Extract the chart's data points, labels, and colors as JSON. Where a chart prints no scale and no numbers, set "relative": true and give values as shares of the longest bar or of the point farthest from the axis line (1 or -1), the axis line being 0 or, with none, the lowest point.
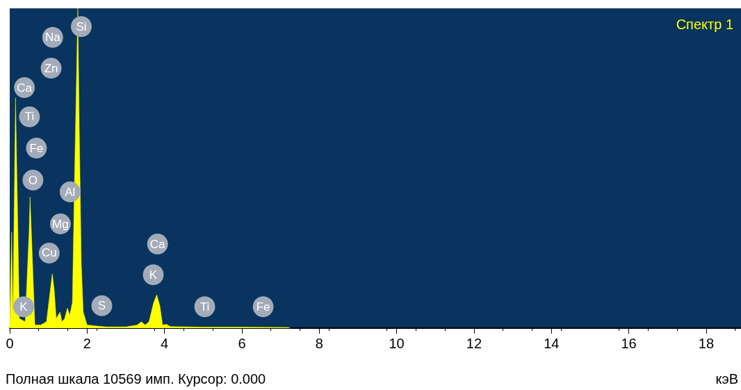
{
  "chart_data": {
    "type": "area",
    "title": "Спектр 1",
    "xlabel": "кэВ",
    "relative": true,
    "color": "#ffff00",
    "x": [
      0,
      0.05,
      0.08,
      0.15,
      0.25,
      0.4,
      0.5,
      0.525,
      0.56,
      0.65,
      0.8,
      0.95,
      1.05,
      1.1,
      1.15,
      1.2,
      1.25,
      1.3,
      1.35,
      1.42,
      1.49,
      1.55,
      1.62,
      1.68,
      1.76,
      1.8,
      1.85,
      1.9,
      2.0,
      2.3,
      2.5,
      3.0,
      3.3,
      3.4,
      3.5,
      3.6,
      3.72,
      3.8,
      3.88,
      3.95,
      4.05,
      4.15,
      5,
      6,
      7.2,
      7.25
    ],
    "values": [
      0,
      0.3,
      0.02,
      0.72,
      0.03,
      0.02,
      0.3,
      0.41,
      0.3,
      0.01,
      0.01,
      0.02,
      0.12,
      0.17,
      0.12,
      0.03,
      0.04,
      0.05,
      0.02,
      0.03,
      0.063,
      0.04,
      0.08,
      0.5,
      1,
      0.6,
      0.2,
      0.05,
      0.01,
      0.006,
      0.004,
      0.004,
      0.01,
      0.02,
      0.01,
      0.02,
      0.08,
      0.104,
      0.07,
      0.01,
      0.012,
      0.005,
      0.003,
      0.003,
      0.002,
      0
    ],
    "xlim": [
      0,
      18.9
    ],
    "xticks": [
      0,
      2,
      4,
      6,
      8,
      10,
      12,
      14,
      16,
      18
    ],
    "annotations": [
      {
        "text": "Si",
        "x": 1.85,
        "y": 0.943
      },
      {
        "text": "Na",
        "x": 1.11,
        "y": 0.909
      },
      {
        "text": "Zn",
        "x": 1.07,
        "y": 0.813
      },
      {
        "text": "Ca",
        "x": 0.38,
        "y": 0.752
      },
      {
        "text": "Ti",
        "x": 0.51,
        "y": 0.661
      },
      {
        "text": "Fe",
        "x": 0.69,
        "y": 0.563
      },
      {
        "text": "O",
        "x": 0.6,
        "y": 0.463
      },
      {
        "text": "Al",
        "x": 1.56,
        "y": 0.426
      },
      {
        "text": "Mg",
        "x": 1.31,
        "y": 0.326
      },
      {
        "text": "Cu",
        "x": 1.02,
        "y": 0.235
      },
      {
        "text": "Ca",
        "x": 3.82,
        "y": 0.263
      },
      {
        "text": "K",
        "x": 3.71,
        "y": 0.167
      },
      {
        "text": "K",
        "x": 0.36,
        "y": 0.067
      },
      {
        "text": "S",
        "x": 2.38,
        "y": 0.07
      },
      {
        "text": "Ti",
        "x": 5.04,
        "y": 0.067
      },
      {
        "text": "Fe",
        "x": 6.55,
        "y": 0.067
      },
      "Полная шкала 10569 имп. Курсор: 0.000"
    ]
  }
}
